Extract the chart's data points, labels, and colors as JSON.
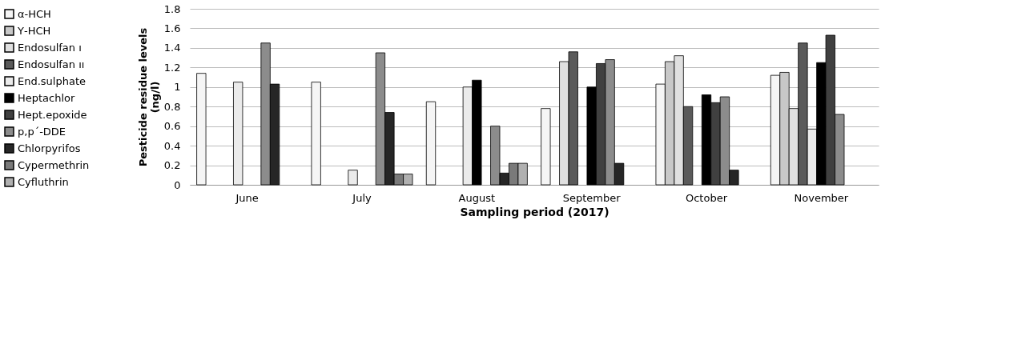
{
  "chart_data": {
    "type": "bar",
    "xlabel": "Sampling period (2017)",
    "ylabel": "Pesticide residue levels\n(ng/l)",
    "categories": [
      "June",
      "July",
      "August",
      "September",
      "October",
      "November"
    ],
    "series": [
      {
        "name": "α-HCH",
        "color": "#f5f5f5",
        "values": [
          1.14,
          1.05,
          0.85,
          0.78,
          1.03,
          1.12
        ]
      },
      {
        "name": "Υ-HCH",
        "color": "#c8c8c8",
        "values": [
          null,
          null,
          null,
          null,
          1.26,
          1.15
        ]
      },
      {
        "name": "Endosulfan ı",
        "color": "#e0e0e0",
        "values": [
          null,
          null,
          null,
          1.26,
          1.32,
          0.78
        ]
      },
      {
        "name": "Endosulfan ıı",
        "color": "#5a5a5a",
        "values": [
          null,
          null,
          null,
          1.36,
          0.8,
          1.45
        ]
      },
      {
        "name": "End.sulphate",
        "color": "#ebebeb",
        "values": [
          1.05,
          0.15,
          1.0,
          null,
          null,
          0.57
        ]
      },
      {
        "name": "Heptachlor",
        "color": "#000000",
        "values": [
          null,
          null,
          1.07,
          1.0,
          0.92,
          1.25
        ]
      },
      {
        "name": "Hept.epoxide",
        "color": "#404040",
        "values": [
          null,
          null,
          null,
          1.24,
          0.84,
          1.53
        ]
      },
      {
        "name": "p,p´-DDE",
        "color": "#8c8c8c",
        "values": [
          1.45,
          1.35,
          0.6,
          1.28,
          0.9,
          0.72
        ]
      },
      {
        "name": "Chlorpyrifos",
        "color": "#262626",
        "values": [
          1.03,
          0.74,
          0.12,
          0.22,
          0.15,
          null
        ]
      },
      {
        "name": "Cypermethrin",
        "color": "#7a7a7a",
        "values": [
          null,
          0.11,
          0.22,
          null,
          null,
          null
        ]
      },
      {
        "name": "Cyfluthrin",
        "color": "#b0b0b0",
        "values": [
          null,
          0.11,
          0.22,
          null,
          null,
          null
        ]
      }
    ],
    "ylim": [
      0,
      1.8
    ],
    "yticks": [
      0,
      0.2,
      0.4,
      0.6,
      0.8,
      1,
      1.2,
      1.4,
      1.6,
      1.8
    ],
    "grid": "y",
    "legend": "left"
  }
}
